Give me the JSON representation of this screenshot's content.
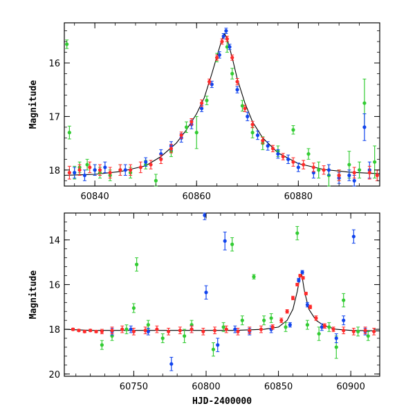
{
  "chart_data": [
    {
      "type": "scatter",
      "panel": "top",
      "ylabel": "Magnitude",
      "xlabel": "",
      "xlim": [
        60834,
        60896
      ],
      "ylim": [
        18.3,
        15.25
      ],
      "y_inverted": true,
      "x_ticks": [
        60840,
        60860,
        60880
      ],
      "y_ticks": [
        16,
        17,
        18
      ],
      "grid": false,
      "colors": {
        "green": "#33cc33",
        "blue": "#1144ee",
        "red": "#ff2a2a",
        "model": "#000000"
      },
      "model_curve": {
        "x": [
          60834,
          60840,
          60845,
          60850,
          60853,
          60856,
          60858,
          60860,
          60861.5,
          60863,
          60864,
          60865,
          60865.5,
          60866,
          60867,
          60868,
          60869.5,
          60871,
          60873,
          60876,
          60880,
          60885,
          60890,
          60896
        ],
        "y": [
          18.1,
          18.08,
          18.03,
          17.92,
          17.75,
          17.5,
          17.25,
          16.95,
          16.65,
          16.2,
          15.88,
          15.55,
          15.45,
          15.55,
          15.9,
          16.3,
          16.75,
          17.1,
          17.4,
          17.68,
          17.88,
          17.99,
          18.04,
          18.07
        ]
      },
      "series": [
        {
          "color": "green",
          "x": [
            60834.5,
            60835,
            60836,
            60837,
            60838.5,
            60840,
            60841,
            60843,
            60845,
            60847,
            60850,
            60852,
            60855,
            60858,
            60860,
            60862,
            60864,
            60866,
            60867,
            60869,
            60871,
            60873,
            60876,
            60879,
            60882,
            60884,
            60886,
            60888,
            60890,
            60892,
            60893,
            60895
          ],
          "y": [
            15.65,
            17.3,
            18.05,
            17.95,
            17.9,
            18.0,
            18.05,
            18.1,
            18.0,
            18.05,
            17.9,
            18.2,
            17.65,
            17.2,
            17.3,
            16.7,
            15.9,
            15.7,
            16.2,
            16.8,
            17.3,
            17.5,
            17.65,
            17.25,
            17.7,
            18.0,
            18.1,
            18.1,
            17.9,
            18.0,
            16.75,
            17.85
          ],
          "err": [
            0.08,
            0.12,
            0.12,
            0.1,
            0.1,
            0.1,
            0.1,
            0.1,
            0.1,
            0.1,
            0.08,
            0.12,
            0.1,
            0.1,
            0.3,
            0.08,
            0.08,
            0.1,
            0.1,
            0.1,
            0.1,
            0.12,
            0.1,
            0.08,
            0.1,
            0.15,
            0.2,
            0.1,
            0.25,
            0.15,
            0.45,
            0.3
          ]
        },
        {
          "color": "blue",
          "x": [
            60836,
            60838,
            60840,
            60842,
            60846,
            60850,
            60853,
            60855,
            60857,
            60859,
            60861,
            60863,
            60864.5,
            60865.3,
            60865.8,
            60866.5,
            60868,
            60870,
            60872,
            60874,
            60876,
            60878,
            60880,
            60883,
            60886,
            60888,
            60890,
            60891,
            60893,
            60894
          ],
          "y": [
            18.05,
            18.1,
            18.0,
            17.95,
            18.0,
            17.85,
            17.7,
            17.55,
            17.4,
            17.15,
            16.85,
            16.4,
            15.85,
            15.5,
            15.4,
            15.7,
            16.5,
            17.0,
            17.35,
            17.55,
            17.7,
            17.8,
            17.95,
            18.05,
            18.0,
            18.15,
            18.1,
            18.2,
            17.2,
            18.0
          ],
          "err": [
            0.1,
            0.1,
            0.1,
            0.1,
            0.1,
            0.08,
            0.08,
            0.08,
            0.08,
            0.08,
            0.06,
            0.06,
            0.06,
            0.05,
            0.05,
            0.05,
            0.06,
            0.08,
            0.08,
            0.08,
            0.08,
            0.08,
            0.08,
            0.1,
            0.1,
            0.1,
            0.1,
            0.1,
            0.25,
            0.15
          ]
        },
        {
          "color": "red",
          "x": [
            60835,
            60837,
            60839,
            60841,
            60843,
            60845,
            60847,
            60849,
            60851,
            60853,
            60855,
            60857,
            60859,
            60861,
            60862.5,
            60864,
            60865,
            60866,
            60867,
            60868,
            60869.5,
            60871,
            60873,
            60875,
            60877,
            60879,
            60881,
            60883,
            60885,
            60888,
            60891,
            60894,
            60895.5
          ],
          "y": [
            18.05,
            18.0,
            17.95,
            18.0,
            18.05,
            18.0,
            18.0,
            17.95,
            17.9,
            17.8,
            17.6,
            17.35,
            17.1,
            16.75,
            16.35,
            15.9,
            15.6,
            15.55,
            15.9,
            16.35,
            16.85,
            17.15,
            17.45,
            17.6,
            17.75,
            17.85,
            17.9,
            17.95,
            18.0,
            18.1,
            18.05,
            18.05,
            18.1
          ],
          "err": [
            0.12,
            0.1,
            0.1,
            0.1,
            0.1,
            0.1,
            0.1,
            0.1,
            0.08,
            0.08,
            0.08,
            0.06,
            0.06,
            0.06,
            0.05,
            0.05,
            0.05,
            0.05,
            0.05,
            0.06,
            0.06,
            0.06,
            0.06,
            0.06,
            0.06,
            0.08,
            0.08,
            0.08,
            0.08,
            0.1,
            0.1,
            0.12,
            0.1
          ]
        }
      ]
    },
    {
      "type": "scatter",
      "panel": "bottom",
      "ylabel": "Magnitude",
      "xlabel": "HJD-2400000",
      "xlim": [
        60702,
        60920
      ],
      "ylim": [
        20.1,
        12.8
      ],
      "y_inverted": true,
      "x_ticks": [
        60750,
        60800,
        60850,
        60900
      ],
      "y_ticks": [
        14,
        16,
        18,
        20
      ],
      "grid": false,
      "colors": {
        "green": "#33cc33",
        "blue": "#1144ee",
        "red": "#ff2a2a",
        "model": "#000000"
      },
      "model_curve": {
        "x": [
          60702,
          60720,
          60740,
          60760,
          60780,
          60800,
          60820,
          60840,
          60850,
          60856,
          60860,
          60863,
          60865,
          60866,
          60868,
          60871,
          60876,
          60882,
          60890,
          60900,
          60920
        ],
        "y": [
          18.0,
          18.05,
          18.05,
          18.05,
          18.05,
          18.05,
          18.05,
          18.0,
          17.9,
          17.6,
          17.1,
          16.3,
          15.6,
          15.5,
          16.3,
          17.1,
          17.6,
          17.85,
          18.0,
          18.05,
          18.07
        ]
      },
      "series": [
        {
          "color": "green",
          "x": [
            60728,
            60735,
            60745,
            60750,
            60752,
            60760,
            60770,
            60785,
            60790,
            60805,
            60812,
            60818,
            60825,
            60833,
            60840,
            60845,
            60855,
            60863,
            60870,
            60878,
            60885,
            60890,
            60895,
            60905,
            60912
          ],
          "y": [
            18.7,
            18.3,
            18.0,
            17.05,
            15.1,
            17.8,
            18.4,
            18.3,
            17.8,
            18.9,
            17.9,
            14.2,
            17.6,
            15.65,
            17.6,
            17.5,
            17.9,
            13.7,
            17.8,
            18.2,
            17.9,
            18.8,
            16.7,
            18.1,
            18.3
          ],
          "err": [
            0.2,
            0.2,
            0.2,
            0.2,
            0.3,
            0.2,
            0.2,
            0.3,
            0.2,
            0.3,
            0.2,
            0.3,
            0.2,
            0.1,
            0.2,
            0.2,
            0.2,
            0.3,
            0.2,
            0.3,
            0.2,
            0.5,
            0.3,
            0.2,
            0.2
          ]
        },
        {
          "color": "blue",
          "x": [
            60735,
            60748,
            60760,
            60776,
            60790,
            60799,
            60800,
            60808,
            60813,
            60820,
            60830,
            60845,
            60858,
            60864,
            60866.5,
            60870,
            60880,
            60890,
            60895,
            60902,
            60910
          ],
          "y": [
            18.1,
            18.0,
            18.1,
            19.55,
            18.0,
            12.9,
            16.35,
            18.7,
            14.05,
            18.0,
            18.1,
            18.0,
            17.8,
            15.8,
            15.45,
            16.9,
            17.9,
            18.4,
            17.6,
            13.85,
            18.1
          ],
          "err": [
            0.15,
            0.15,
            0.15,
            0.3,
            0.15,
            0.2,
            0.3,
            0.3,
            0.4,
            0.15,
            0.15,
            0.15,
            0.1,
            0.08,
            0.08,
            0.1,
            0.15,
            0.2,
            0.2,
            0.3,
            0.15
          ]
        },
        {
          "color": "red",
          "x": [
            60708,
            60712,
            60716,
            60720,
            60724,
            60728,
            60735,
            60742,
            60750,
            60758,
            60766,
            60774,
            60782,
            60790,
            60798,
            60806,
            60814,
            60822,
            60830,
            60838,
            60846,
            60852,
            60856,
            60860,
            60863,
            60865,
            60867,
            60869,
            60872,
            60876,
            60882,
            60888,
            60895,
            60902,
            60910,
            60916
          ],
          "y": [
            18.0,
            18.05,
            18.1,
            18.05,
            18.1,
            18.1,
            18.05,
            18.0,
            18.1,
            18.05,
            18.0,
            18.1,
            18.05,
            18.0,
            18.1,
            18.05,
            18.0,
            18.1,
            18.05,
            18.0,
            17.9,
            17.6,
            17.2,
            16.6,
            16.0,
            15.6,
            15.7,
            16.4,
            17.0,
            17.5,
            17.85,
            18.0,
            18.05,
            18.1,
            18.05,
            18.1
          ],
          "err": [
            0.05,
            0.05,
            0.05,
            0.05,
            0.05,
            0.1,
            0.15,
            0.15,
            0.15,
            0.15,
            0.15,
            0.15,
            0.15,
            0.15,
            0.15,
            0.15,
            0.15,
            0.15,
            0.15,
            0.15,
            0.1,
            0.1,
            0.08,
            0.08,
            0.06,
            0.06,
            0.06,
            0.06,
            0.08,
            0.1,
            0.1,
            0.1,
            0.15,
            0.15,
            0.15,
            0.15
          ]
        }
      ]
    }
  ]
}
